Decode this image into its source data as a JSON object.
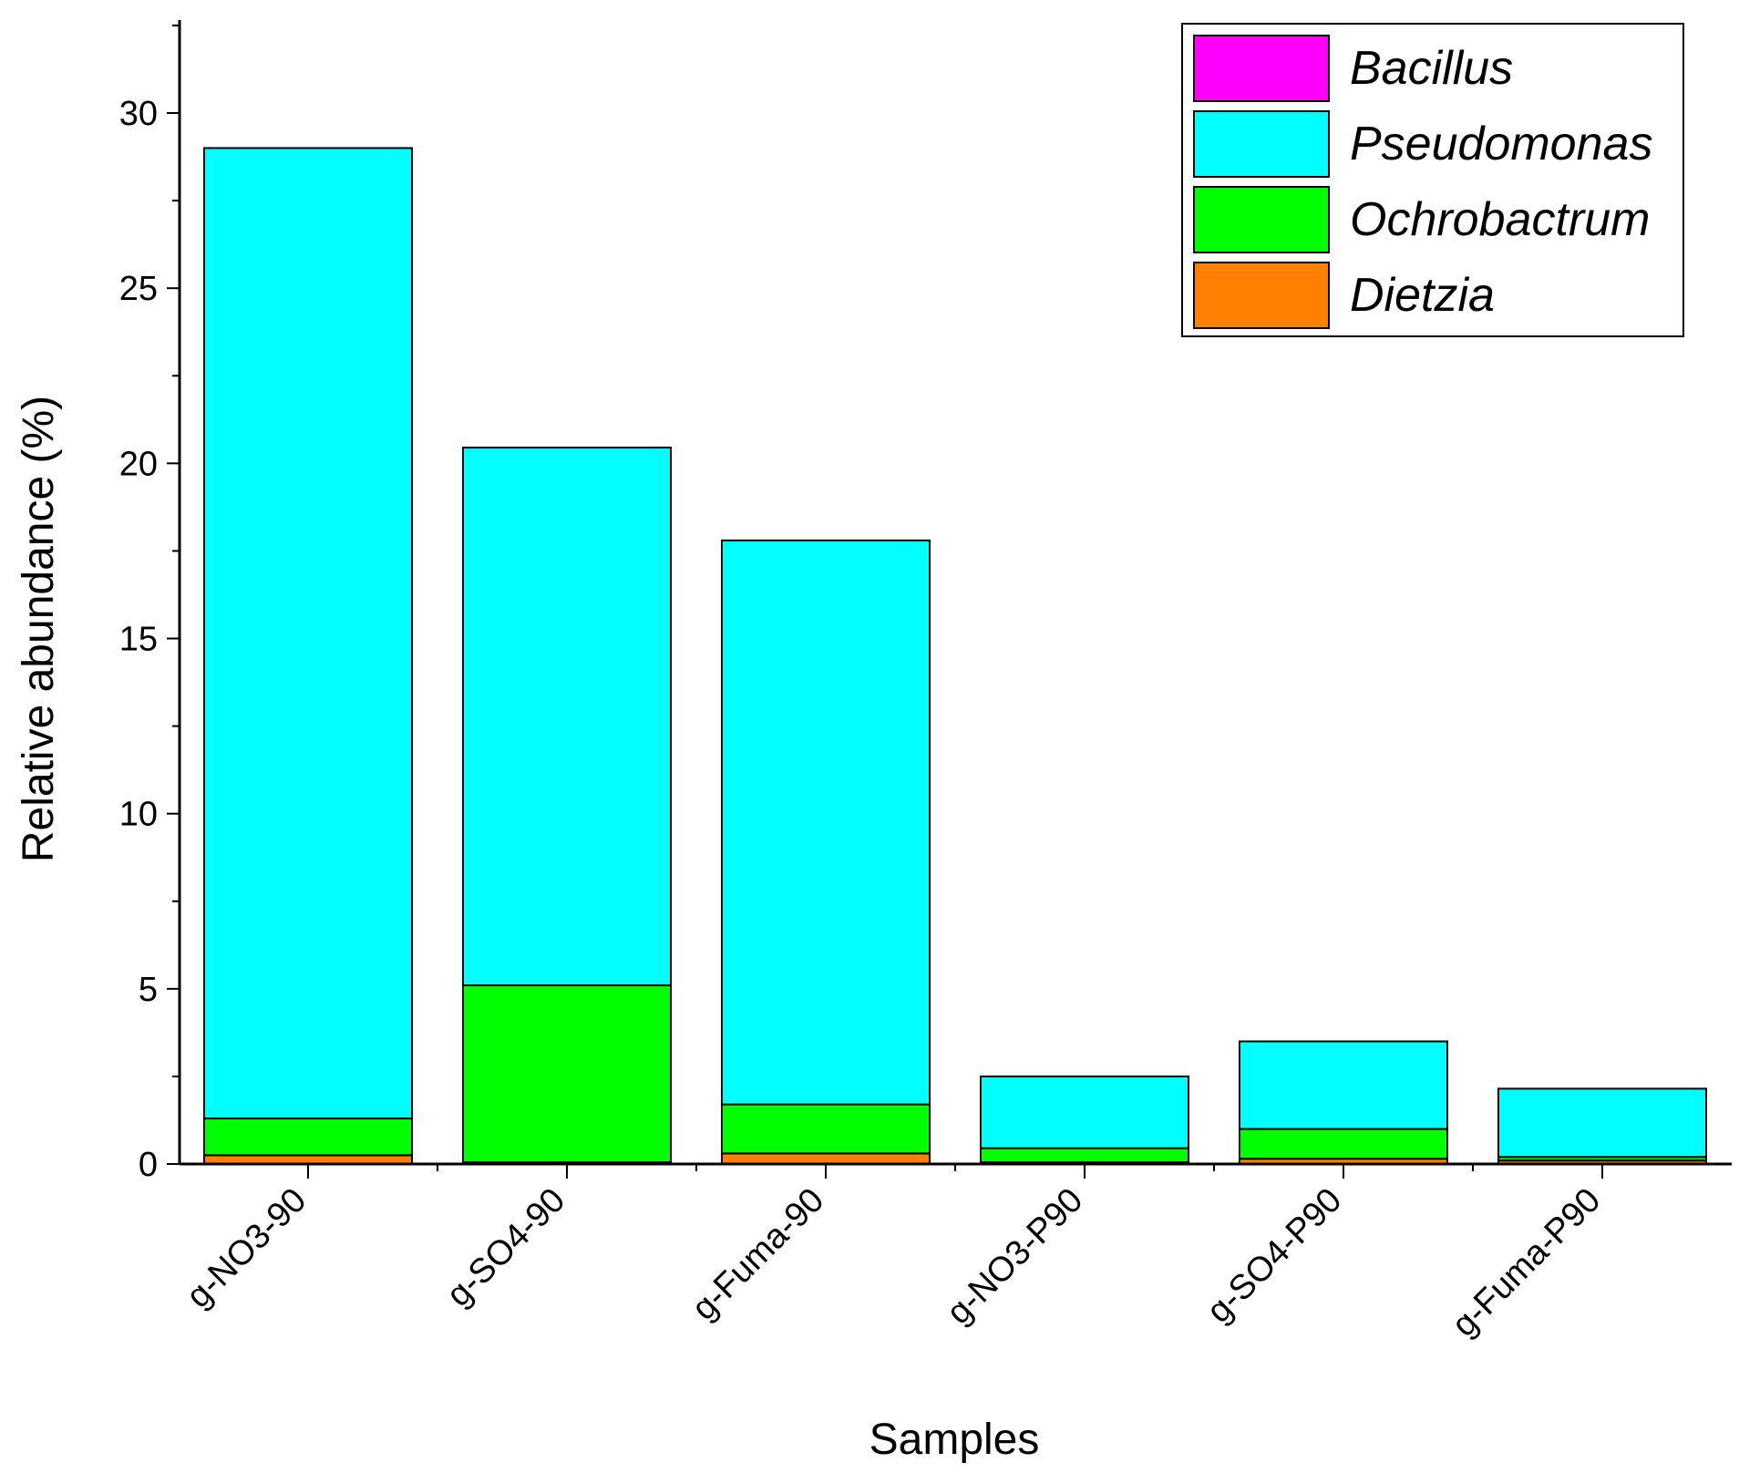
{
  "chart_data": {
    "type": "bar",
    "stacked": true,
    "title": "",
    "xlabel": "Samples",
    "ylabel": "Relative abundance (%)",
    "ylim": [
      0,
      32.5
    ],
    "yticks": [
      0,
      5,
      10,
      15,
      20,
      25,
      30
    ],
    "legend_position": "top-right",
    "categories": [
      "g-NO3-90",
      "g-SO4-90",
      "g-Fuma-90",
      "g-NO3-P90",
      "g-SO4-P90",
      "g-Fuma-P90"
    ],
    "series": [
      {
        "name": "Dietzia",
        "color": "#ff8000",
        "values": [
          0.25,
          0.05,
          0.3,
          0.05,
          0.15,
          0.1
        ]
      },
      {
        "name": "Ochrobactrum",
        "color": "#00ff00",
        "values": [
          1.05,
          5.05,
          1.4,
          0.4,
          0.85,
          0.1
        ]
      },
      {
        "name": "Pseudomonas",
        "color": "#00ffff",
        "values": [
          27.7,
          15.35,
          16.1,
          2.05,
          2.5,
          1.95
        ]
      },
      {
        "name": "Bacillus",
        "color": "#ff00ff",
        "values": [
          0,
          0,
          0,
          0,
          0,
          0
        ]
      }
    ],
    "legend_order": [
      "Bacillus",
      "Pseudomonas",
      "Ochrobactrum",
      "Dietzia"
    ]
  }
}
